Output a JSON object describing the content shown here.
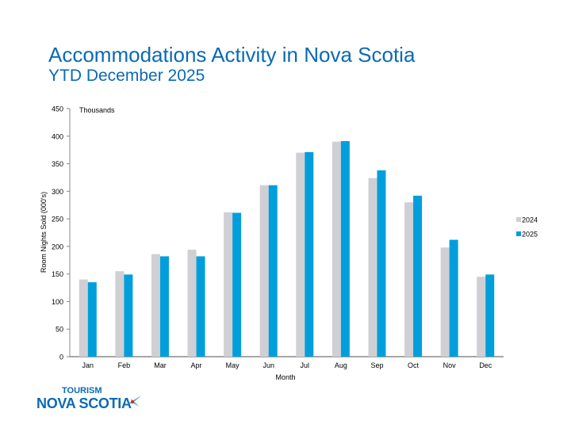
{
  "header": {
    "title": "Accommodations Activity in Nova Scotia",
    "subtitle": "YTD December 2025"
  },
  "logo": {
    "line1": "TOURISM",
    "line2": "NOVA SCOTIA"
  },
  "chart_data": {
    "type": "bar",
    "categories": [
      "Jan",
      "Feb",
      "Mar",
      "Apr",
      "May",
      "Jun",
      "Jul",
      "Aug",
      "Sep",
      "Oct",
      "Nov",
      "Dec"
    ],
    "series": [
      {
        "name": "2024",
        "color": "#d0cfd4",
        "values": [
          140,
          155,
          186,
          194,
          262,
          311,
          370,
          390,
          324,
          280,
          198,
          145
        ]
      },
      {
        "name": "2025",
        "color": "#009fdb",
        "values": [
          135,
          149,
          182,
          182,
          261,
          311,
          371,
          391,
          338,
          292,
          212,
          149
        ]
      }
    ],
    "xlabel": "Month",
    "ylabel": "Room Nights Sold (000's)",
    "units_label": "Thousands",
    "ylim": [
      0,
      450
    ],
    "yticks": [
      0,
      50,
      100,
      150,
      200,
      250,
      300,
      350,
      400,
      450
    ],
    "grid": false,
    "legend": "right"
  }
}
